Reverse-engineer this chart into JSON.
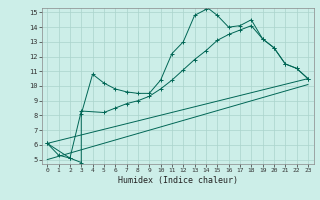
{
  "xlabel": "Humidex (Indice chaleur)",
  "bg_color": "#cceee8",
  "grid_color": "#aad4cc",
  "line_color": "#006655",
  "xlim": [
    -0.5,
    23.5
  ],
  "ylim": [
    4.7,
    15.3
  ],
  "xticks": [
    0,
    1,
    2,
    3,
    4,
    5,
    6,
    7,
    8,
    9,
    10,
    11,
    12,
    13,
    14,
    15,
    16,
    17,
    18,
    19,
    20,
    21,
    22,
    23
  ],
  "yticks": [
    5,
    6,
    7,
    8,
    9,
    10,
    11,
    12,
    13,
    14,
    15
  ],
  "line1_x": [
    0,
    1,
    2,
    3,
    3,
    4,
    5,
    6,
    7,
    8,
    9,
    10,
    11,
    12,
    13,
    14,
    14,
    15,
    16,
    17,
    18,
    19,
    20,
    21,
    22,
    23
  ],
  "line1_y": [
    6.1,
    5.3,
    5.1,
    4.8,
    8.1,
    10.8,
    10.2,
    9.8,
    9.6,
    9.5,
    9.5,
    10.4,
    12.2,
    13.0,
    14.8,
    15.2,
    15.4,
    14.8,
    14.0,
    14.1,
    14.5,
    13.2,
    12.6,
    11.5,
    11.2,
    10.5
  ],
  "line2_x": [
    0,
    2,
    3,
    5,
    6,
    7,
    8,
    9,
    10,
    11,
    12,
    13,
    14,
    15,
    16,
    17,
    18,
    19,
    20,
    21,
    22,
    23
  ],
  "line2_y": [
    6.1,
    5.1,
    8.3,
    8.2,
    8.5,
    8.8,
    9.0,
    9.3,
    9.8,
    10.4,
    11.1,
    11.8,
    12.4,
    13.1,
    13.5,
    13.8,
    14.1,
    13.2,
    12.6,
    11.5,
    11.2,
    10.5
  ],
  "line3_x": [
    0,
    23
  ],
  "line3_y": [
    6.1,
    10.5
  ],
  "line4_x": [
    0,
    23
  ],
  "line4_y": [
    5.0,
    10.1
  ]
}
